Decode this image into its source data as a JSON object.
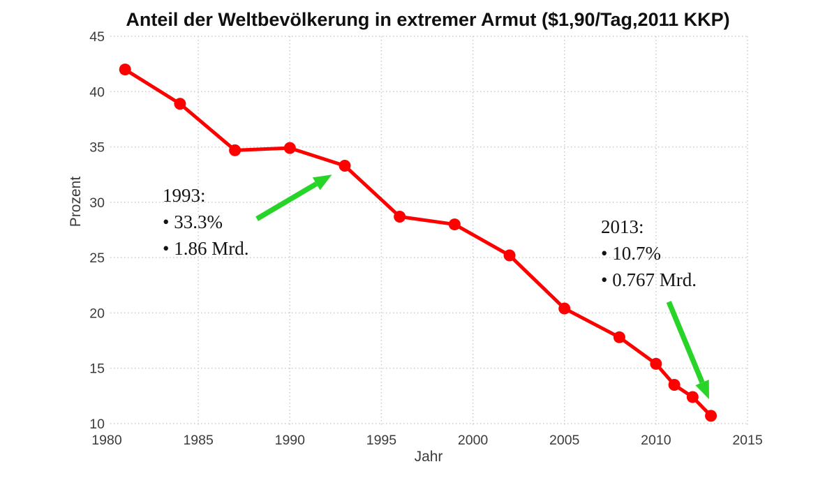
{
  "chart_data": {
    "type": "line",
    "title": "Anteil der Weltbevölkerung in extremer Armut ($1,90/Tag,2011 KKP)",
    "xlabel": "Jahr",
    "ylabel": "Prozent",
    "x": [
      1981,
      1984,
      1987,
      1990,
      1993,
      1996,
      1999,
      2002,
      2005,
      2008,
      2010,
      2011,
      2012,
      2013
    ],
    "series": [
      {
        "name": "Anteil der Weltbevölkerung in extremer Armut",
        "values": [
          42.0,
          38.9,
          34.7,
          34.9,
          33.3,
          28.7,
          28.0,
          25.2,
          20.4,
          17.8,
          15.4,
          13.5,
          12.4,
          10.7
        ]
      }
    ],
    "xlim": [
      1980,
      2015
    ],
    "ylim": [
      10,
      45
    ],
    "x_ticks": [
      1980,
      1985,
      1990,
      1995,
      2000,
      2005,
      2010,
      2015
    ],
    "y_ticks": [
      10,
      15,
      20,
      25,
      30,
      35,
      40,
      45
    ],
    "grid": "dotted major gridlines, no axis spines",
    "legend": "none",
    "annotations": [
      {
        "id": "ann-1993",
        "lines": [
          "1993:",
          "• 33.3%",
          "• 1.86 Mrd."
        ],
        "arrow": {
          "from": [
            1988.2,
            28.5
          ],
          "to": [
            1992.3,
            32.5
          ]
        }
      },
      {
        "id": "ann-2013",
        "lines": [
          "2013:",
          "• 10.7%",
          "• 0.767 Mrd."
        ],
        "arrow": {
          "from": [
            2010.7,
            21.0
          ],
          "to": [
            2012.9,
            12.2
          ]
        }
      }
    ],
    "colors": {
      "line": "#ff0000",
      "marker": "#ff0000",
      "arrow": "#29d429",
      "grid": "#cbcbcb",
      "tick_text": "#3b3b3b",
      "title_text": "#101010"
    }
  }
}
